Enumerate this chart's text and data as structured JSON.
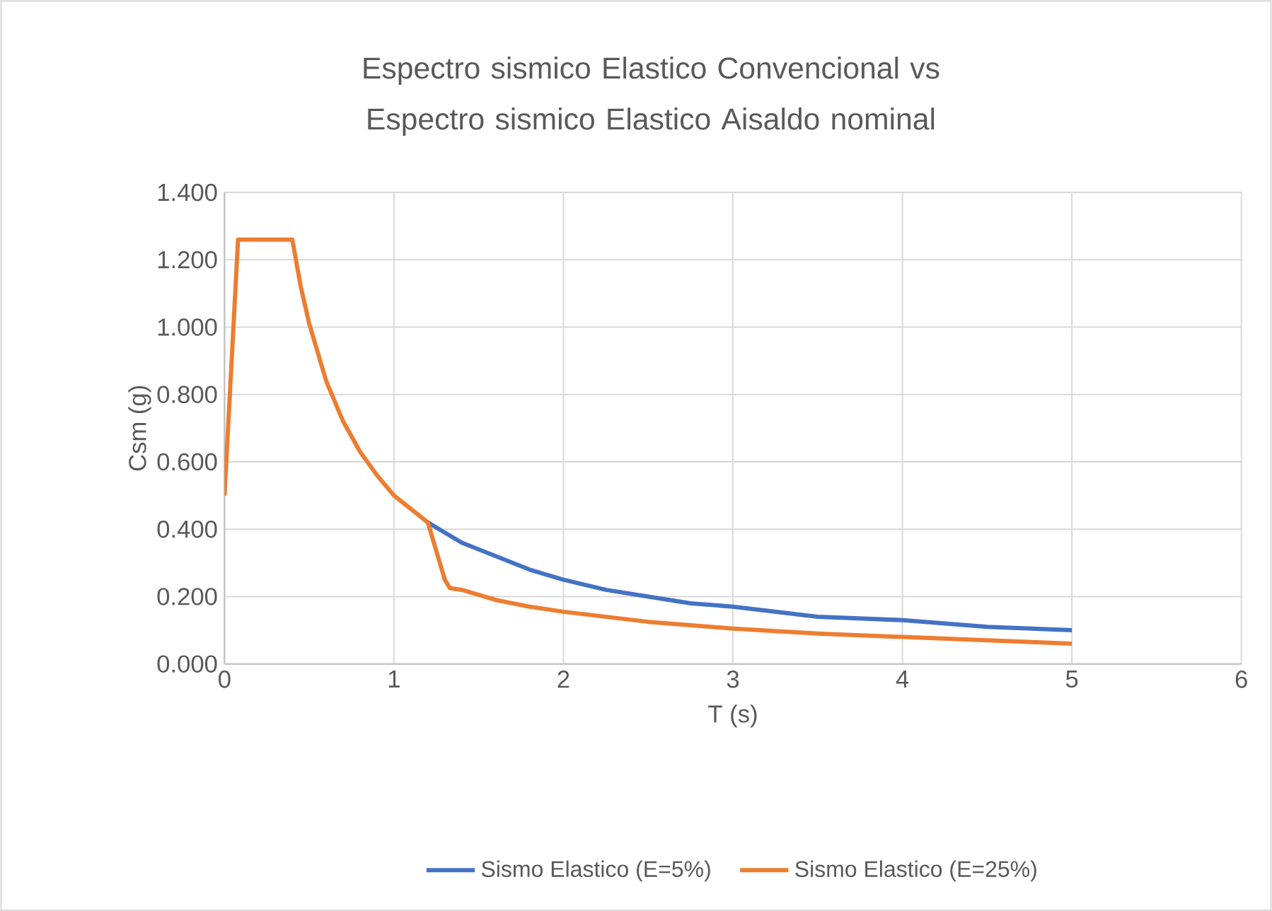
{
  "chart_data": {
    "type": "line",
    "title": "Espectro sismico Elastico Convencional vs Espectro sismico Elastico Aisaldo nominal",
    "xlabel": "T (s)",
    "ylabel": "Csm (g)",
    "xlim": [
      0,
      6
    ],
    "xticks": [
      0,
      1,
      2,
      3,
      4,
      5,
      6
    ],
    "ylim": [
      0,
      1.4
    ],
    "yticks": [
      {
        "value": 0,
        "label": "0.000"
      },
      {
        "value": 0.2,
        "label": "0.200"
      },
      {
        "value": 0.4,
        "label": "0.400"
      },
      {
        "value": 0.6,
        "label": "0.600"
      },
      {
        "value": 0.8,
        "label": "0.800"
      },
      {
        "value": 1.0,
        "label": "1.000"
      },
      {
        "value": 1.2,
        "label": "1.200"
      },
      {
        "value": 1.4,
        "label": "1.400"
      }
    ],
    "grid": true,
    "legend": "bottom",
    "marker": "none",
    "line_style": "solid",
    "series": [
      {
        "name": "Sismo Elastico (E=5%)",
        "color": "#4472c4",
        "x": [
          1.2,
          1.3,
          1.4,
          1.6,
          1.8,
          2.0,
          2.25,
          2.5,
          2.75,
          3.0,
          3.5,
          4.0,
          4.5,
          5.0
        ],
        "values": [
          0.42,
          0.39,
          0.36,
          0.32,
          0.28,
          0.25,
          0.22,
          0.2,
          0.18,
          0.17,
          0.14,
          0.13,
          0.11,
          0.1
        ]
      },
      {
        "name": "Sismo Elastico (E=25%)",
        "color": "#ed7d31",
        "x": [
          0,
          0.08,
          0.4,
          0.45,
          0.5,
          0.6,
          0.7,
          0.8,
          0.9,
          1.0,
          1.1,
          1.15,
          1.2,
          1.3,
          1.33,
          1.4,
          1.6,
          1.8,
          2.0,
          2.5,
          3.0,
          3.5,
          4.0,
          4.5,
          5.0
        ],
        "values": [
          0.5,
          1.26,
          1.26,
          1.12,
          1.01,
          0.84,
          0.72,
          0.63,
          0.56,
          0.5,
          0.46,
          0.44,
          0.42,
          0.25,
          0.225,
          0.22,
          0.19,
          0.17,
          0.155,
          0.125,
          0.105,
          0.09,
          0.08,
          0.07,
          0.06
        ]
      }
    ]
  }
}
